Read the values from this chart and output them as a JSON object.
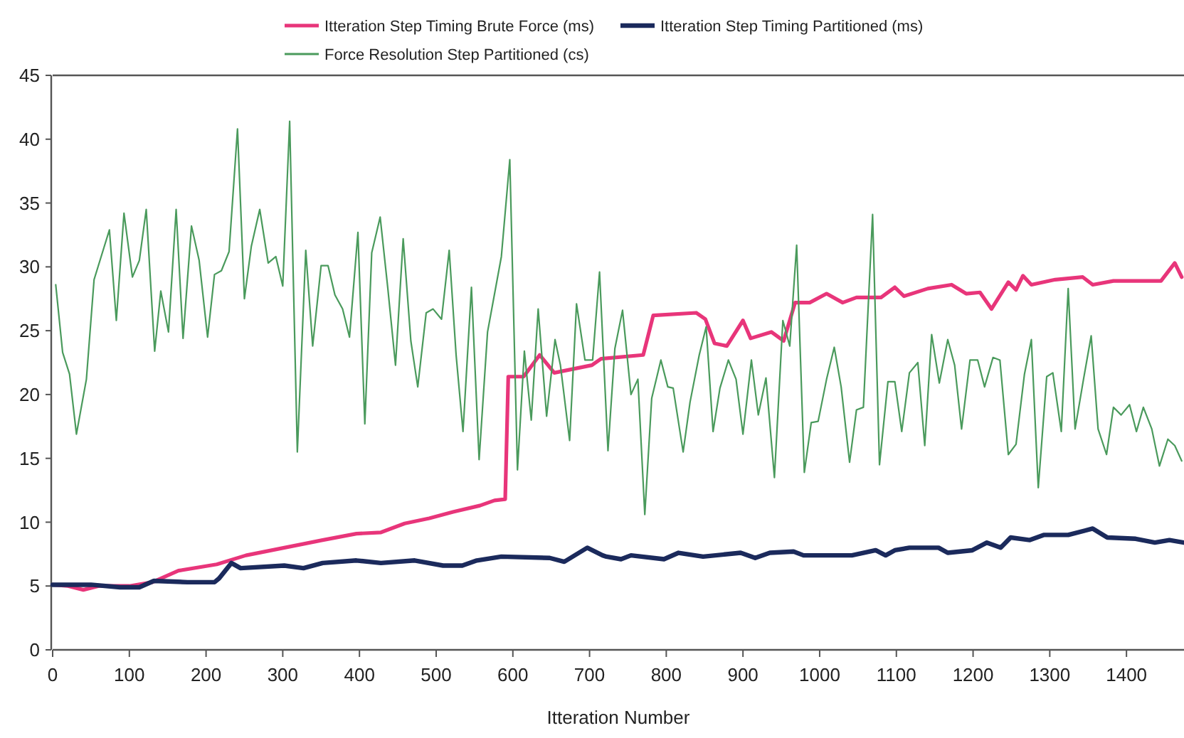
{
  "chart_data": {
    "type": "line",
    "xlabel": "Itteration Number",
    "xlim": [
      0,
      1475
    ],
    "xticks": [
      0,
      100,
      200,
      300,
      400,
      500,
      600,
      700,
      800,
      900,
      1000,
      1100,
      1200,
      1300,
      1400
    ],
    "ylim": [
      0,
      45
    ],
    "yticks": [
      0,
      5,
      10,
      15,
      20,
      25,
      30,
      35,
      40,
      45
    ],
    "grid": false,
    "legend": "top",
    "marker": "none",
    "line_style": "solid",
    "series": [
      {
        "name": "Itteration Step Timing Brute Force (ms)",
        "color": "#e8357a",
        "x": [
          0,
          20,
          40,
          60,
          100,
          130,
          164,
          214,
          252,
          302,
          352,
          396,
          428,
          459,
          491,
          522,
          557,
          576,
          590,
          594,
          614,
          635,
          654,
          703,
          715,
          770,
          783,
          839,
          851,
          863,
          879,
          900,
          910,
          937,
          953,
          968,
          987,
          1009,
          1030,
          1048,
          1080,
          1098,
          1110,
          1141,
          1172,
          1191,
          1209,
          1224,
          1246,
          1256,
          1265,
          1276,
          1307,
          1343,
          1356,
          1383,
          1445,
          1463,
          1472
        ],
        "values": [
          5.1,
          5.0,
          4.7,
          5.0,
          5.0,
          5.3,
          6.2,
          6.7,
          7.4,
          8.0,
          8.6,
          9.1,
          9.2,
          9.9,
          10.3,
          10.8,
          11.3,
          11.7,
          11.8,
          21.4,
          21.4,
          23.1,
          21.7,
          22.3,
          22.8,
          23.1,
          26.2,
          26.4,
          25.9,
          24.0,
          23.8,
          25.8,
          24.4,
          24.9,
          24.2,
          27.2,
          27.2,
          27.9,
          27.2,
          27.6,
          27.6,
          28.4,
          27.7,
          28.3,
          28.6,
          27.9,
          28.0,
          26.7,
          28.8,
          28.2,
          29.3,
          28.6,
          29.0,
          29.2,
          28.6,
          28.9,
          28.9,
          30.3,
          29.2
        ]
      },
      {
        "name": "Itteration Step Timing Partitioned (ms)",
        "color": "#1b2a5c",
        "x": [
          0,
          50,
          88,
          113,
          132,
          176,
          211,
          217,
          233,
          245,
          302,
          327,
          352,
          396,
          428,
          472,
          509,
          534,
          553,
          585,
          648,
          667,
          697,
          717,
          722,
          741,
          754,
          797,
          816,
          848,
          897,
          916,
          935,
          966,
          979,
          1042,
          1073,
          1086,
          1098,
          1117,
          1155,
          1167,
          1199,
          1218,
          1236,
          1249,
          1274,
          1292,
          1324,
          1356,
          1375,
          1412,
          1437,
          1456,
          1475
        ],
        "values": [
          5.1,
          5.1,
          4.9,
          4.9,
          5.4,
          5.3,
          5.3,
          5.6,
          6.8,
          6.4,
          6.6,
          6.4,
          6.8,
          7.0,
          6.8,
          7.0,
          6.6,
          6.6,
          7.0,
          7.3,
          7.2,
          6.9,
          8.0,
          7.4,
          7.3,
          7.1,
          7.4,
          7.1,
          7.6,
          7.3,
          7.6,
          7.2,
          7.6,
          7.7,
          7.4,
          7.4,
          7.8,
          7.4,
          7.8,
          8.0,
          8.0,
          7.6,
          7.8,
          8.4,
          8.0,
          8.8,
          8.6,
          9.0,
          9.0,
          9.5,
          8.8,
          8.7,
          8.4,
          8.6,
          8.4
        ]
      },
      {
        "name": "Force Resolution Step Partitioned (cs)",
        "color": "#4a9a5c",
        "x": [
          4,
          13,
          22,
          31,
          44,
          54,
          74,
          83,
          93,
          104,
          113,
          122,
          133,
          141,
          151,
          161,
          170,
          181,
          191,
          202,
          211,
          220,
          230,
          241,
          250,
          259,
          270,
          281,
          291,
          300,
          309,
          319,
          330,
          339,
          350,
          359,
          368,
          378,
          387,
          398,
          407,
          416,
          427,
          437,
          447,
          457,
          467,
          476,
          487,
          496,
          507,
          517,
          526,
          535,
          546,
          556,
          567,
          585,
          596,
          606,
          615,
          624,
          633,
          644,
          655,
          662,
          674,
          683,
          694,
          704,
          713,
          724,
          733,
          743,
          754,
          763,
          772,
          781,
          793,
          802,
          809,
          822,
          831,
          843,
          852,
          861,
          870,
          881,
          891,
          900,
          911,
          920,
          930,
          941,
          952,
          961,
          970,
          980,
          989,
          998,
          1009,
          1019,
          1028,
          1039,
          1048,
          1057,
          1069,
          1078,
          1089,
          1098,
          1107,
          1117,
          1128,
          1137,
          1146,
          1156,
          1167,
          1176,
          1185,
          1196,
          1206,
          1215,
          1226,
          1235,
          1246,
          1256,
          1267,
          1276,
          1285,
          1296,
          1304,
          1315,
          1324,
          1333,
          1344,
          1354,
          1363,
          1374,
          1383,
          1393,
          1404,
          1413,
          1422,
          1433,
          1443,
          1454,
          1463,
          1472
        ],
        "values": [
          28.6,
          23.3,
          21.6,
          16.9,
          21.2,
          29.0,
          32.9,
          25.8,
          34.2,
          29.2,
          30.5,
          34.5,
          23.4,
          28.1,
          24.9,
          34.5,
          24.4,
          33.2,
          30.5,
          24.5,
          29.4,
          29.7,
          31.2,
          40.8,
          27.5,
          31.6,
          34.5,
          30.3,
          30.8,
          28.5,
          41.4,
          15.5,
          31.3,
          23.8,
          30.1,
          30.1,
          27.8,
          26.7,
          24.5,
          32.7,
          17.7,
          31.1,
          33.9,
          28.3,
          22.3,
          32.2,
          24.2,
          20.6,
          26.4,
          26.7,
          25.9,
          31.3,
          23.1,
          17.1,
          28.4,
          14.9,
          24.9,
          30.8,
          38.4,
          14.1,
          23.4,
          18.0,
          26.7,
          18.3,
          24.3,
          22.3,
          16.4,
          27.1,
          22.7,
          22.7,
          29.6,
          15.6,
          23.6,
          26.6,
          20.0,
          21.2,
          10.6,
          19.7,
          22.7,
          20.6,
          20.5,
          15.5,
          19.4,
          23.1,
          25.3,
          17.1,
          20.5,
          22.7,
          21.2,
          16.9,
          22.7,
          18.4,
          21.3,
          13.5,
          25.8,
          23.8,
          31.7,
          13.9,
          17.8,
          17.9,
          21.2,
          23.7,
          20.6,
          14.7,
          18.8,
          19.0,
          34.1,
          14.5,
          21.0,
          21.0,
          17.1,
          21.7,
          22.5,
          16.0,
          24.7,
          20.9,
          24.3,
          22.3,
          17.3,
          22.7,
          22.7,
          20.6,
          22.9,
          22.7,
          15.3,
          16.1,
          21.6,
          24.3,
          12.7,
          21.4,
          21.7,
          17.1,
          28.3,
          17.3,
          21.2,
          24.6,
          17.3,
          15.3,
          19.0,
          18.4,
          19.2,
          17.1,
          19.0,
          17.3,
          14.4,
          16.5,
          16.0,
          14.8
        ]
      }
    ]
  }
}
